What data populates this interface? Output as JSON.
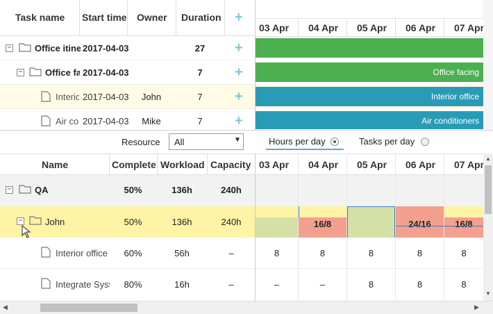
{
  "top_grid": {
    "columns": [
      "Task name",
      "Start time",
      "Owner",
      "Duration"
    ],
    "add_label": "+",
    "rows": [
      {
        "name": "Office itinerary",
        "start": "2017-04-03",
        "owner": "",
        "duration": "27"
      },
      {
        "name": "Office facing",
        "start": "2017-04-03",
        "owner": "",
        "duration": "7"
      },
      {
        "name": "Interior office",
        "start": "2017-04-03",
        "owner": "John",
        "duration": "7"
      },
      {
        "name": "Air conditioners",
        "start": "2017-04-03",
        "owner": "Mike",
        "duration": "7"
      }
    ]
  },
  "top_timeline": {
    "dates": [
      "03 Apr",
      "04 Apr",
      "05 Apr",
      "06 Apr",
      "07 Apr"
    ],
    "bars": [
      {
        "label": "",
        "color": "#4caf50"
      },
      {
        "label": "Office facing",
        "color": "#4caf50"
      },
      {
        "label": "Interior office",
        "color": "#2a9bb7"
      },
      {
        "label": "Air conditioners",
        "color": "#2a9bb7"
      }
    ]
  },
  "filter_bar": {
    "resource_label": "Resource",
    "resource_value": "All",
    "hours_label": "Hours per day",
    "tasks_label": "Tasks per day"
  },
  "bottom_grid": {
    "columns": [
      "Name",
      "Complete",
      "Workload",
      "Capacity"
    ],
    "rows": [
      {
        "name": "QA",
        "complete": "50%",
        "workload": "136h",
        "capacity": "240h"
      },
      {
        "name": "John",
        "complete": "50%",
        "workload": "136h",
        "capacity": "240h"
      },
      {
        "name": "Interior office",
        "complete": "60%",
        "workload": "56h",
        "capacity": "–"
      },
      {
        "name": "Integrate System",
        "complete": "80%",
        "workload": "16h",
        "capacity": "–"
      }
    ]
  },
  "bottom_timeline": {
    "dates": [
      "03 Apr",
      "04 Apr",
      "05 Apr",
      "06 Apr",
      "07 Apr"
    ],
    "john_cells": [
      "",
      "16/8",
      "",
      "24/16",
      "16/8"
    ],
    "interior_cells": [
      "8",
      "8",
      "8",
      "8",
      "8"
    ],
    "integrate_cells": [
      "–",
      "–",
      "8",
      "8",
      "8"
    ]
  },
  "colors": {
    "selected_row": "#fff3a6",
    "overload": "#f4a08e",
    "ok": "#d4e0a6",
    "group_row": "#f2f2f2",
    "accent": "#7fc6d8"
  }
}
